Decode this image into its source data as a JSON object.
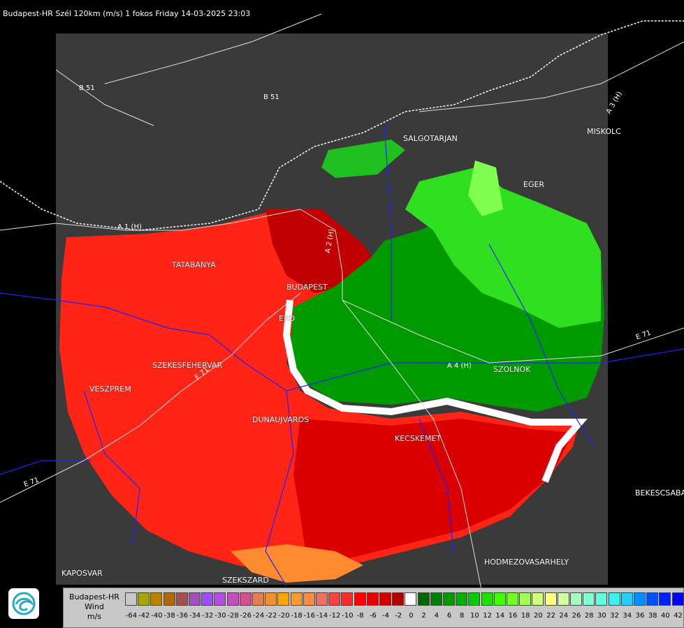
{
  "title": "Budapest-HR Szél 120km (m/s) 1 fokos Friday 14-03-2025 23:03",
  "cities": [
    {
      "name": "SALGOTARJAN"
    },
    {
      "name": "MISKOLC"
    },
    {
      "name": "EGER"
    },
    {
      "name": "TATABANYA"
    },
    {
      "name": "BUDAPEST"
    },
    {
      "name": "ERD"
    },
    {
      "name": "SZEKESFEHERVAR"
    },
    {
      "name": "VESZPREM"
    },
    {
      "name": "DUNAUJVAROS"
    },
    {
      "name": "KECSKEMET"
    },
    {
      "name": "SZOLNOK"
    },
    {
      "name": "BEKESCSABA"
    },
    {
      "name": "HODMEZOVASARHELY"
    },
    {
      "name": "KAPOSVAR"
    },
    {
      "name": "SZEKSZARD"
    }
  ],
  "roads": [
    {
      "name": "B 51"
    },
    {
      "name": "B 51"
    },
    {
      "name": "A 1 (H)"
    },
    {
      "name": "A 2 (H)"
    },
    {
      "name": "A 3 (H)"
    },
    {
      "name": "A 4 (H)"
    },
    {
      "name": "E 71"
    },
    {
      "name": "E 71"
    },
    {
      "name": "E 71"
    }
  ],
  "legend": {
    "name": "Budapest-HR",
    "variable": "Wind",
    "unit": "m/s",
    "ticks": [
      "-64",
      "-42",
      "-40",
      "-38",
      "-36",
      "-34",
      "-32",
      "-30",
      "-28",
      "-26",
      "-24",
      "-22",
      "-20",
      "-18",
      "-16",
      "-14",
      "-12",
      "-10",
      "-8",
      "-6",
      "-4",
      "-2",
      "0",
      "2",
      "4",
      "6",
      "8",
      "10",
      "12",
      "14",
      "16",
      "18",
      "20",
      "22",
      "24",
      "26",
      "28",
      "30",
      "32",
      "34",
      "36",
      "38",
      "40",
      "42"
    ],
    "colors": [
      "#c8c8c8",
      "#a6a600",
      "#b88400",
      "#b06a00",
      "#a85050",
      "#a050b8",
      "#9d4cff",
      "#b050e0",
      "#c050c0",
      "#d05090",
      "#e08050",
      "#f09030",
      "#ffa500",
      "#ff9a30",
      "#ff8c40",
      "#f07060",
      "#ff4040",
      "#ff2a2a",
      "#ff0000",
      "#e80000",
      "#d00000",
      "#b00000",
      "#ffffff",
      "#006a00",
      "#008000",
      "#009a00",
      "#00b000",
      "#00cc00",
      "#20e000",
      "#40ff00",
      "#70ff20",
      "#a0ff50",
      "#d0ff80",
      "#ffff80",
      "#d0ffa0",
      "#a0ffc0",
      "#80ffd0",
      "#60ffe0",
      "#40f0f0",
      "#20d0ff",
      "#0090ff",
      "#0050ff",
      "#0020f0",
      "#0000ff"
    ]
  },
  "colors": {
    "background": "#000000",
    "radar_frame": "#3a3a3a",
    "approaching": "#ff2a1a",
    "receding": "#00b000",
    "boundary": "#ffffff"
  }
}
